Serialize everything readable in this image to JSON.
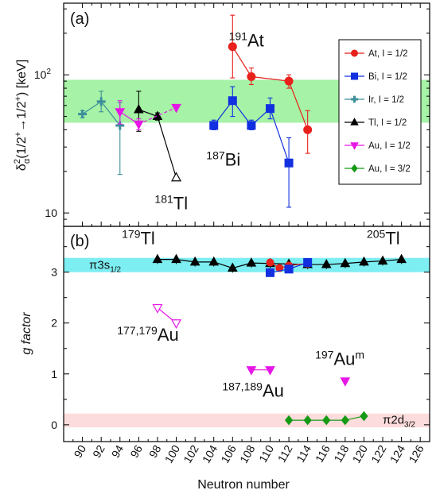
{
  "chart_data": [
    {
      "type": "scatter",
      "panel_label": "(a)",
      "ylabel": "δα2(1/2+→1/2+) [keV]",
      "yscale": "log",
      "ylim": [
        8,
        330
      ],
      "xlim": [
        88,
        127
      ],
      "yticks": [
        "10",
        "10²"
      ],
      "band": {
        "from": 45,
        "to": 92,
        "color": "#a6f2a6"
      },
      "legend_position": "top-right",
      "legend": [
        {
          "label": "At, I = 1/2",
          "color": "#e8211c",
          "marker": "circle"
        },
        {
          "label": "Bi, I = 1/2",
          "color": "#1230e0",
          "marker": "square"
        },
        {
          "label": "Ir, I = 1/2",
          "color": "#3d8f9a",
          "marker": "plus"
        },
        {
          "label": "Tl, I = 1/2",
          "color": "#000000",
          "marker": "triangle-up"
        },
        {
          "label": "Au, I = 1/2",
          "color": "#e617e6",
          "marker": "triangle-down"
        },
        {
          "label": "Au, I = 3/2",
          "color": "#169a16",
          "marker": "diamond"
        }
      ],
      "series": [
        {
          "name": "At, I = 1/2",
          "color": "#e8211c",
          "marker": "circle",
          "points": [
            {
              "x": 106,
              "y": 160,
              "lo": 95,
              "hi": 270
            },
            {
              "x": 108,
              "y": 97,
              "lo": 85,
              "hi": 112
            },
            {
              "x": 112,
              "y": 90,
              "lo": 80,
              "hi": 100
            },
            {
              "x": 114,
              "y": 40,
              "lo": 27,
              "hi": 55
            }
          ]
        },
        {
          "name": "Bi, I = 1/2",
          "color": "#1230e0",
          "marker": "square",
          "points": [
            {
              "x": 104,
              "y": 43,
              "lo": 40,
              "hi": 47
            },
            {
              "x": 106,
              "y": 65,
              "lo": 50,
              "hi": 82
            },
            {
              "x": 108,
              "y": 43,
              "lo": 40,
              "hi": 47
            },
            {
              "x": 110,
              "y": 57,
              "lo": 48,
              "hi": 68
            },
            {
              "x": 112,
              "y": 23,
              "lo": 11,
              "hi": 35
            }
          ]
        },
        {
          "name": "Ir, I = 1/2",
          "color": "#3d8f9a",
          "marker": "plus",
          "points": [
            {
              "x": 90,
              "y": 52,
              "lo": 49,
              "hi": 55
            },
            {
              "x": 92,
              "y": 64,
              "lo": 54,
              "hi": 76
            },
            {
              "x": 94,
              "y": 43,
              "lo": 19,
              "hi": 63
            }
          ]
        },
        {
          "name": "Tl, I = 1/2",
          "color": "#000000",
          "marker": "triangle-up",
          "points": [
            {
              "x": 96,
              "y": 56,
              "lo": 39,
              "hi": 76
            },
            {
              "x": 98,
              "y": 50,
              "lo": 47,
              "hi": 53
            },
            {
              "x": 100,
              "y": 18,
              "open": true
            }
          ]
        },
        {
          "name": "Au, I = 1/2",
          "color": "#e617e6",
          "marker": "triangle-down",
          "points": [
            {
              "x": 94,
              "y": 54,
              "lo": 44,
              "hi": 65
            },
            {
              "x": 96,
              "y": 44,
              "lo": 40,
              "hi": 48
            },
            {
              "x": 100,
              "y": 58
            }
          ]
        }
      ],
      "annotations": [
        {
          "sym": "At",
          "A": "191",
          "x": 105.6,
          "y": 160
        },
        {
          "sym": "Bi",
          "A": "187",
          "x": 103.2,
          "y": 22
        },
        {
          "sym": "Tl",
          "A": "181",
          "x": 97.7,
          "y": 10.6
        }
      ]
    },
    {
      "type": "scatter",
      "panel_label": "(b)",
      "ylabel": "g factor",
      "xlabel": "Neutron number",
      "ylim": [
        -0.33,
        3.9
      ],
      "xlim": [
        88,
        127
      ],
      "yticks": [
        "0",
        "1",
        "2",
        "3"
      ],
      "xticks": [
        "90",
        "92",
        "94",
        "96",
        "98",
        "100",
        "102",
        "104",
        "106",
        "108",
        "110",
        "112",
        "114",
        "116",
        "118",
        "120",
        "122",
        "124",
        "126"
      ],
      "bands": [
        {
          "from": 3.0,
          "to": 3.28,
          "color": "#7deef2",
          "label": "π3s1/2"
        },
        {
          "from": -0.05,
          "to": 0.22,
          "color": "#fcdcdc",
          "label": "π2d3/2"
        }
      ],
      "series": [
        {
          "name": "Tl, I = 1/2",
          "color": "#000000",
          "marker": "triangle-up",
          "x": [
            98,
            100,
            102,
            104,
            106,
            108,
            110,
            112,
            114,
            116,
            118,
            120,
            122,
            124
          ],
          "y": [
            3.25,
            3.25,
            3.2,
            3.2,
            3.08,
            3.18,
            3.17,
            3.16,
            3.15,
            3.15,
            3.17,
            3.2,
            3.22,
            3.25
          ]
        },
        {
          "name": "At, I = 1/2",
          "color": "#e8211c",
          "marker": "circle",
          "x": [
            110,
            111,
            112,
            114
          ],
          "y": [
            3.19,
            3.08,
            3.13,
            3.17
          ]
        },
        {
          "name": "Bi, I = 1/2",
          "color": "#1230e0",
          "marker": "square",
          "x": [
            110,
            112,
            114
          ],
          "y": [
            2.99,
            3.06,
            3.19
          ]
        },
        {
          "name": "Au, I = 1/2 (open)",
          "color": "#e617e6",
          "marker": "triangle-down-open",
          "x": [
            98,
            100
          ],
          "y": [
            2.3,
            2.0
          ]
        },
        {
          "name": "Au, I = 1/2",
          "color": "#e617e6",
          "marker": "triangle-down",
          "x": [
            108,
            110,
            118
          ],
          "y": [
            1.08,
            1.08,
            0.86
          ]
        },
        {
          "name": "Au, I = 3/2",
          "color": "#169a16",
          "marker": "diamond",
          "x": [
            112,
            114,
            116,
            118,
            120
          ],
          "y": [
            0.09,
            0.09,
            0.09,
            0.09,
            0.17
          ]
        }
      ],
      "annotations": [
        {
          "sym": "Tl",
          "A": "179",
          "x": 94.2,
          "y": 3.55
        },
        {
          "sym": "Tl",
          "A": "205",
          "x": 120.3,
          "y": 3.55
        },
        {
          "sym": "Au",
          "A": "177,179",
          "x": 93.7,
          "y": 1.65
        },
        {
          "sym": "Au",
          "A": "187,189",
          "x": 104.9,
          "y": 0.55
        },
        {
          "sym": "Au",
          "A": "197",
          "sup2": "m",
          "x": 114.8,
          "y": 1.18
        }
      ]
    }
  ]
}
